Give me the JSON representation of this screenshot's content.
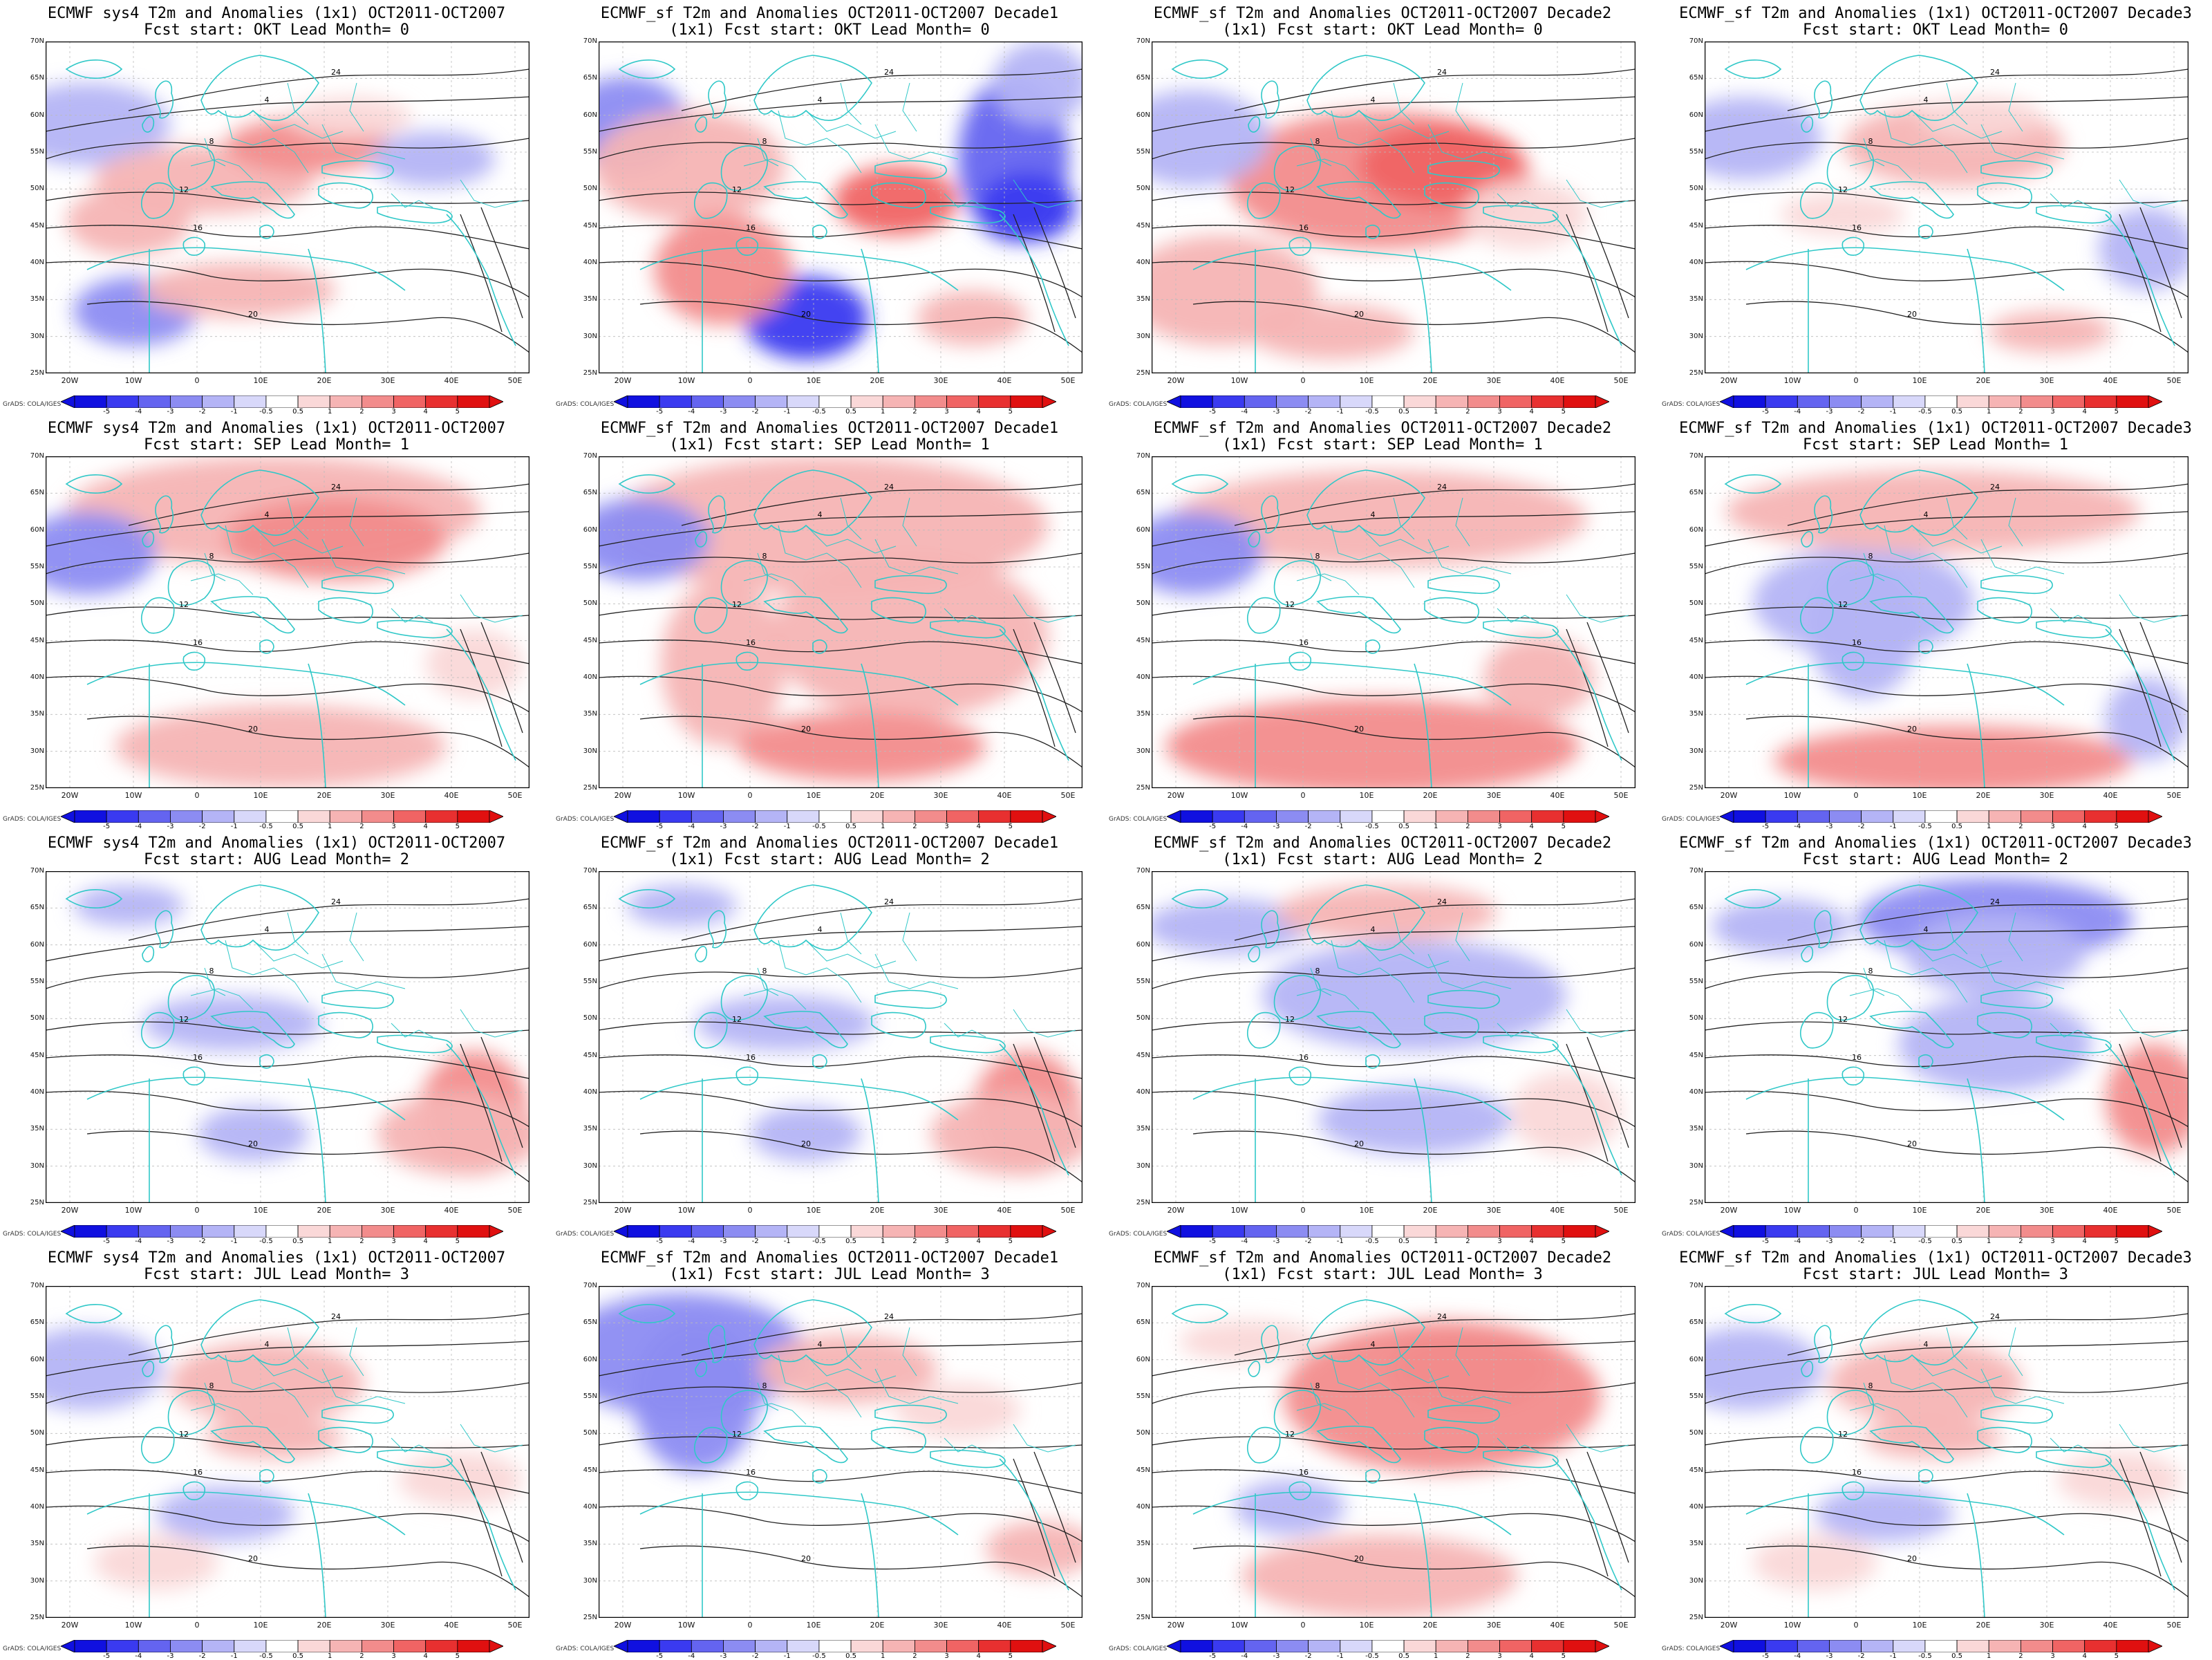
{
  "panels": [
    {
      "title1": "ECMWF sys4 T2m and Anomalies (1x1) OCT2011-OCT2007",
      "title2": "Fcst start: OKT  Lead Month= 0",
      "anomaly": "mixed-mid"
    },
    {
      "title1": "ECMWF_sf T2m and Anomalies OCT2011-OCT2007 Decade1",
      "title2": "(1x1) Fcst start: OKT  Lead Month= 0",
      "anomaly": "strong"
    },
    {
      "title1": "ECMWF_sf T2m and Anomalies OCT2011-OCT2007 Decade2",
      "title2": "(1x1) Fcst start: OKT  Lead Month= 0",
      "anomaly": "warm-central"
    },
    {
      "title1": "ECMWF_sf T2m and Anomalies (1x1) OCT2011-OCT2007 Decade3",
      "title2": "Fcst start: OKT  Lead Month= 0",
      "anomaly": "weak-mixed"
    },
    {
      "title1": "ECMWF sys4 T2m and Anomalies (1x1) OCT2011-OCT2007",
      "title2": "Fcst start: SEP  Lead Month= 1",
      "anomaly": "warm-north"
    },
    {
      "title1": "ECMWF_sf T2m and Anomalies OCT2011-OCT2007 Decade1",
      "title2": "(1x1) Fcst start: SEP  Lead Month= 1",
      "anomaly": "warm-wide"
    },
    {
      "title1": "ECMWF_sf T2m and Anomalies OCT2011-OCT2007 Decade2",
      "title2": "(1x1) Fcst start: SEP  Lead Month= 1",
      "anomaly": "warm-south"
    },
    {
      "title1": "ECMWF_sf T2m and Anomalies (1x1) OCT2011-OCT2007 Decade3",
      "title2": "Fcst start: SEP  Lead Month= 1",
      "anomaly": "cool-west"
    },
    {
      "title1": "ECMWF sys4 T2m and Anomalies (1x1) OCT2011-OCT2007",
      "title2": "Fcst start: AUG  Lead Month= 2",
      "anomaly": "weak-east"
    },
    {
      "title1": "ECMWF_sf T2m and Anomalies OCT2011-OCT2007 Decade1",
      "title2": "(1x1) Fcst start: AUG  Lead Month= 2",
      "anomaly": "weak-east"
    },
    {
      "title1": "ECMWF_sf T2m and Anomalies OCT2011-OCT2007 Decade2",
      "title2": "(1x1) Fcst start: AUG  Lead Month= 2",
      "anomaly": "cool-light"
    },
    {
      "title1": "ECMWF_sf T2m and Anomalies (1x1) OCT2011-OCT2007 Decade3",
      "title2": "Fcst start: AUG  Lead Month= 2",
      "anomaly": "cool-north"
    },
    {
      "title1": "ECMWF sys4 T2m and Anomalies (1x1) OCT2011-OCT2007",
      "title2": "Fcst start: JUL  Lead Month= 3",
      "anomaly": "mixed-light"
    },
    {
      "title1": "ECMWF_sf T2m and Anomalies OCT2011-OCT2007 Decade1",
      "title2": "(1x1) Fcst start: JUL  Lead Month= 3",
      "anomaly": "cool-nw"
    },
    {
      "title1": "ECMWF_sf T2m and Anomalies OCT2011-OCT2007 Decade2",
      "title2": "(1x1) Fcst start: JUL  Lead Month= 3",
      "anomaly": "warm-east"
    },
    {
      "title1": "ECMWF_sf T2m and Anomalies (1x1) OCT2011-OCT2007 Decade3",
      "title2": "Fcst start: JUL  Lead Month= 3",
      "anomaly": "mixed-light"
    }
  ],
  "lat_labels": [
    "70N",
    "65N",
    "60N",
    "55N",
    "50N",
    "45N",
    "40N",
    "35N",
    "30N",
    "25N"
  ],
  "lon_labels": [
    "20W",
    "10W",
    "0",
    "10E",
    "20E",
    "30E",
    "40E",
    "50E"
  ],
  "colorbar": {
    "ticks": [
      "-5",
      "-4",
      "-3",
      "-2",
      "-1",
      "-0.5",
      "0.5",
      "1",
      "2",
      "3",
      "4",
      "5"
    ],
    "colors": [
      "#1010e0",
      "#3a3af0",
      "#6464f0",
      "#8c8cf2",
      "#b4b4f6",
      "#d8d8fa",
      "#ffffff",
      "#fad8d8",
      "#f6b4b4",
      "#f28c8c",
      "#f06464",
      "#e83030",
      "#e01010"
    ],
    "credit": "GrADS: COLA/IGES"
  },
  "contour_labels": [
    "4",
    "8",
    "12",
    "16",
    "20",
    "24"
  ],
  "colors": {
    "coast": "#30c8c8",
    "contour": "#222222",
    "grid": "#bbbbbb"
  }
}
